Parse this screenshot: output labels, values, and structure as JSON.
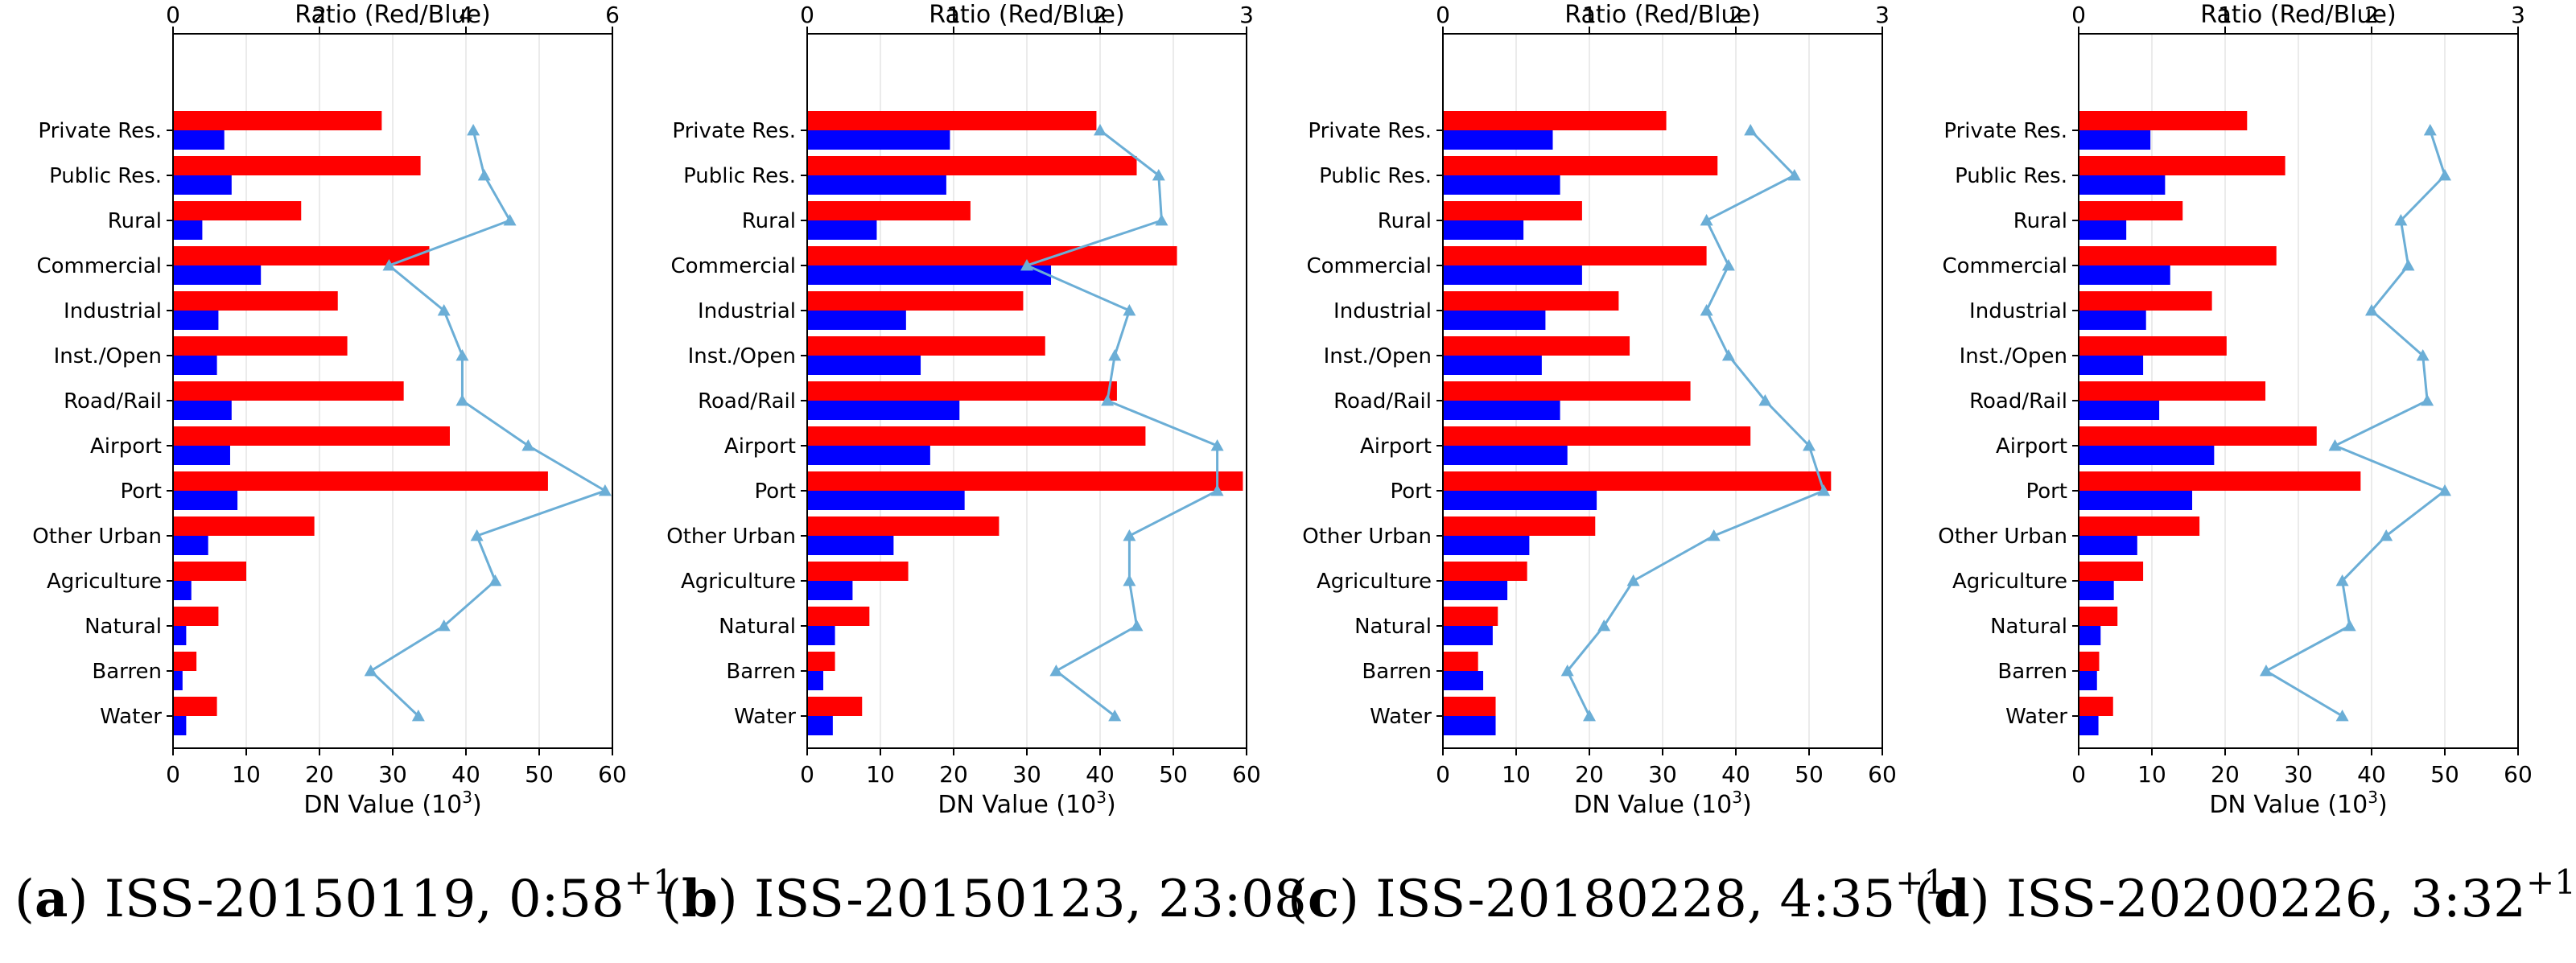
{
  "chart_data": [
    {
      "type": "bar",
      "panel": "a",
      "caption": {
        "letter": "a",
        "text": "ISS-20150119, 0:58",
        "superscript": "+1"
      },
      "categories": [
        "Private Res.",
        "Public Res.",
        "Rural",
        "Commercial",
        "Industrial",
        "Inst./Open",
        "Road/Rail",
        "Airport",
        "Port",
        "Other Urban",
        "Agriculture",
        "Natural",
        "Barren",
        "Water"
      ],
      "series": [
        {
          "name": "Red",
          "color": "#ff0000",
          "values": [
            28.5,
            33.8,
            17.5,
            35.0,
            22.5,
            23.8,
            31.5,
            37.8,
            51.2,
            19.3,
            10.0,
            6.2,
            3.2,
            6.0
          ]
        },
        {
          "name": "Blue",
          "color": "#0000ff",
          "values": [
            7.0,
            8.0,
            4.0,
            12.0,
            6.2,
            6.0,
            8.0,
            7.8,
            8.8,
            4.8,
            2.5,
            1.8,
            1.3,
            1.8
          ]
        },
        {
          "name": "Ratio (Red/Blue)",
          "color": "#6baed6",
          "axis": "top",
          "values": [
            4.1,
            4.25,
            4.6,
            2.95,
            3.7,
            3.95,
            3.95,
            4.85,
            5.9,
            4.15,
            4.4,
            3.7,
            2.7,
            3.35
          ]
        }
      ],
      "xlabel": "DN Value (10",
      "xlabel_sup": "3",
      "xlabel_end": ")",
      "top_label": "Ratio (Red/Blue)",
      "xlim": [
        0,
        60
      ],
      "top_xlim": [
        0,
        6
      ],
      "xticks": [
        "0",
        "10",
        "20",
        "30",
        "40",
        "50",
        "60"
      ],
      "top_ticks": [
        "0",
        "2",
        "4",
        "6"
      ]
    },
    {
      "type": "bar",
      "panel": "b",
      "caption": {
        "letter": "b",
        "text": "ISS-20150123, 23:08",
        "superscript": ""
      },
      "categories": [
        "Private Res.",
        "Public Res.",
        "Rural",
        "Commercial",
        "Industrial",
        "Inst./Open",
        "Road/Rail",
        "Airport",
        "Port",
        "Other Urban",
        "Agriculture",
        "Natural",
        "Barren",
        "Water"
      ],
      "series": [
        {
          "name": "Red",
          "color": "#ff0000",
          "values": [
            39.5,
            45.0,
            22.3,
            50.5,
            29.5,
            32.5,
            42.3,
            46.2,
            59.5,
            26.2,
            13.8,
            8.5,
            3.8,
            7.5
          ]
        },
        {
          "name": "Blue",
          "color": "#0000ff",
          "values": [
            19.5,
            19.0,
            9.5,
            33.3,
            13.5,
            15.5,
            20.8,
            16.8,
            21.5,
            11.8,
            6.2,
            3.8,
            2.2,
            3.5
          ]
        },
        {
          "name": "Ratio (Red/Blue)",
          "color": "#6baed6",
          "axis": "top",
          "values": [
            2.0,
            2.4,
            2.42,
            1.5,
            2.2,
            2.1,
            2.05,
            2.8,
            2.8,
            2.2,
            2.2,
            2.25,
            1.7,
            2.1
          ]
        }
      ],
      "xlabel": "DN Value (10",
      "xlabel_sup": "3",
      "xlabel_end": ")",
      "top_label": "Ratio (Red/Blue)",
      "xlim": [
        0,
        60
      ],
      "top_xlim": [
        0,
        3
      ],
      "xticks": [
        "0",
        "10",
        "20",
        "30",
        "40",
        "50",
        "60"
      ],
      "top_ticks": [
        "0",
        "1",
        "2",
        "3"
      ]
    },
    {
      "type": "bar",
      "panel": "c",
      "caption": {
        "letter": "c",
        "text": "ISS-20180228, 4:35",
        "superscript": "+1"
      },
      "categories": [
        "Private Res.",
        "Public Res.",
        "Rural",
        "Commercial",
        "Industrial",
        "Inst./Open",
        "Road/Rail",
        "Airport",
        "Port",
        "Other Urban",
        "Agriculture",
        "Natural",
        "Barren",
        "Water"
      ],
      "series": [
        {
          "name": "Red",
          "color": "#ff0000",
          "values": [
            30.5,
            37.5,
            19.0,
            36.0,
            24.0,
            25.5,
            33.8,
            42.0,
            53.0,
            20.8,
            11.5,
            7.5,
            4.8,
            7.2
          ]
        },
        {
          "name": "Blue",
          "color": "#0000ff",
          "values": [
            15.0,
            16.0,
            11.0,
            19.0,
            14.0,
            13.5,
            16.0,
            17.0,
            21.0,
            11.8,
            8.8,
            6.8,
            5.5,
            7.2
          ]
        },
        {
          "name": "Ratio (Red/Blue)",
          "color": "#6baed6",
          "axis": "top",
          "values": [
            2.1,
            2.4,
            1.8,
            1.95,
            1.8,
            1.95,
            2.2,
            2.5,
            2.6,
            1.85,
            1.3,
            1.1,
            0.85,
            1.0
          ]
        }
      ],
      "xlabel": "DN Value (10",
      "xlabel_sup": "3",
      "xlabel_end": ")",
      "top_label": "Ratio (Red/Blue)",
      "xlim": [
        0,
        60
      ],
      "top_xlim": [
        0,
        3
      ],
      "xticks": [
        "0",
        "10",
        "20",
        "30",
        "40",
        "50",
        "60"
      ],
      "top_ticks": [
        "0",
        "1",
        "2",
        "3"
      ]
    },
    {
      "type": "bar",
      "panel": "d",
      "caption": {
        "letter": "d",
        "text": "ISS-20200226, 3:32",
        "superscript": "+1"
      },
      "categories": [
        "Private Res.",
        "Public Res.",
        "Rural",
        "Commercial",
        "Industrial",
        "Inst./Open",
        "Road/Rail",
        "Airport",
        "Port",
        "Other Urban",
        "Agriculture",
        "Natural",
        "Barren",
        "Water"
      ],
      "series": [
        {
          "name": "Red",
          "color": "#ff0000",
          "values": [
            23.0,
            28.2,
            14.2,
            27.0,
            18.2,
            20.2,
            25.5,
            32.5,
            38.5,
            16.5,
            8.8,
            5.3,
            2.8,
            4.7
          ]
        },
        {
          "name": "Blue",
          "color": "#0000ff",
          "values": [
            9.8,
            11.8,
            6.5,
            12.5,
            9.2,
            8.8,
            11.0,
            18.5,
            15.5,
            8.0,
            4.8,
            3.0,
            2.5,
            2.7
          ]
        },
        {
          "name": "Ratio (Red/Blue)",
          "color": "#6baed6",
          "axis": "top",
          "values": [
            2.4,
            2.5,
            2.2,
            2.25,
            2.0,
            2.35,
            2.38,
            1.75,
            2.5,
            2.1,
            1.8,
            1.85,
            1.28,
            1.8
          ]
        }
      ],
      "xlabel": "DN Value (10",
      "xlabel_sup": "3",
      "xlabel_end": ")",
      "top_label": "Ratio (Red/Blue)",
      "xlim": [
        0,
        60
      ],
      "top_xlim": [
        0,
        3
      ],
      "xticks": [
        "0",
        "10",
        "20",
        "30",
        "40",
        "50",
        "60"
      ],
      "top_ticks": [
        "0",
        "1",
        "2",
        "3"
      ]
    }
  ]
}
